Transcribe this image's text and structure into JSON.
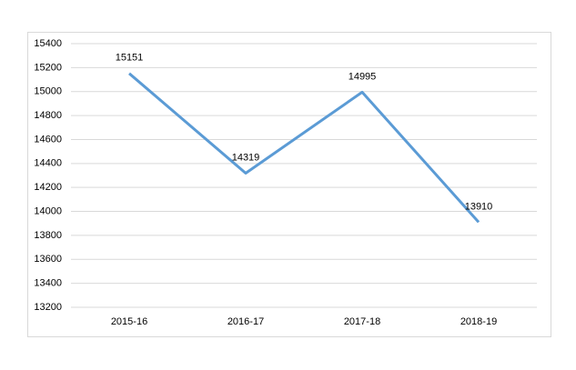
{
  "chart_data": {
    "type": "line",
    "categories": [
      "2015-16",
      "2016-17",
      "2017-18",
      "2018-19"
    ],
    "values": [
      15151,
      14319,
      14995,
      13910
    ],
    "color": "#5b9bd5",
    "ylim": [
      13200,
      15400
    ],
    "yticks": [
      13200,
      13400,
      13600,
      13800,
      14000,
      14200,
      14400,
      14600,
      14800,
      15000,
      15200,
      15400
    ],
    "grid": true
  }
}
